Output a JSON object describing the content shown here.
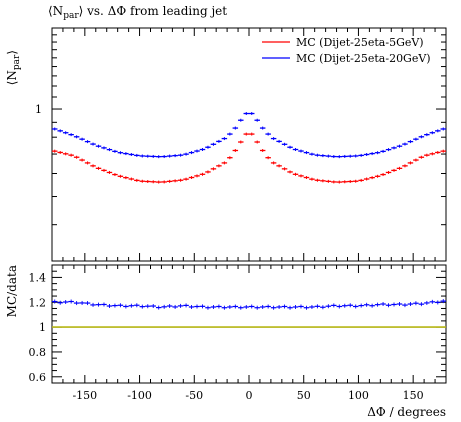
{
  "title": "⟨N_par⟩ vs. ΔΦ from leading jet",
  "chart_data": [
    {
      "type": "line",
      "ylabel": "⟨N_par⟩",
      "yscale": "log",
      "y_tick_labels": [
        "1"
      ],
      "ylim": [
        0.3,
        1.9
      ],
      "xlim": [
        -180,
        180
      ],
      "legend_position": "top-right",
      "series": [
        {
          "name": "MC (Dijet-25eta-5GeV)",
          "color": "#ff0000",
          "x": [
            -180,
            -160,
            -140,
            -120,
            -100,
            -80,
            -60,
            -40,
            -20,
            -10,
            -5,
            0,
            5,
            10,
            20,
            40,
            60,
            80,
            100,
            120,
            140,
            160,
            180
          ],
          "values": [
            0.72,
            0.69,
            0.63,
            0.59,
            0.565,
            0.56,
            0.57,
            0.6,
            0.66,
            0.74,
            0.8,
            0.84,
            0.8,
            0.74,
            0.66,
            0.6,
            0.57,
            0.56,
            0.565,
            0.59,
            0.63,
            0.69,
            0.72
          ]
        },
        {
          "name": "MC (Dijet-25eta-20GeV)",
          "color": "#0000ff",
          "x": [
            -180,
            -160,
            -140,
            -120,
            -100,
            -80,
            -60,
            -40,
            -20,
            -10,
            -5,
            0,
            5,
            10,
            20,
            40,
            60,
            80,
            100,
            120,
            140,
            160,
            180
          ],
          "values": [
            0.86,
            0.81,
            0.75,
            0.71,
            0.69,
            0.685,
            0.695,
            0.73,
            0.8,
            0.88,
            0.95,
            0.98,
            0.95,
            0.88,
            0.8,
            0.73,
            0.695,
            0.685,
            0.69,
            0.71,
            0.75,
            0.81,
            0.86
          ]
        }
      ]
    },
    {
      "type": "line",
      "ylabel": "MC/data",
      "xlabel": "ΔΦ / degrees",
      "ylim": [
        0.55,
        1.5
      ],
      "xlim": [
        -180,
        180
      ],
      "x_ticks": [
        -150,
        -100,
        -50,
        0,
        50,
        100,
        150
      ],
      "x_tick_labels": [
        "-150",
        "-100",
        "-50",
        "0",
        "50",
        "100",
        "150"
      ],
      "y_ticks": [
        0.6,
        0.8,
        1.0,
        1.2,
        1.4
      ],
      "y_tick_labels": [
        "0.6",
        "0.8",
        "1",
        "1.2",
        "1.4"
      ],
      "reference_line": {
        "y": 1.0,
        "color": "#b5b514"
      },
      "series": [
        {
          "color": "#0000ff",
          "x": [
            -180,
            -160,
            -140,
            -120,
            -100,
            -80,
            -60,
            -40,
            -20,
            0,
            20,
            40,
            60,
            80,
            100,
            120,
            140,
            160,
            180
          ],
          "values": [
            1.2,
            1.2,
            1.18,
            1.17,
            1.17,
            1.16,
            1.17,
            1.16,
            1.16,
            1.16,
            1.16,
            1.16,
            1.16,
            1.17,
            1.17,
            1.18,
            1.18,
            1.19,
            1.21
          ]
        }
      ]
    }
  ]
}
